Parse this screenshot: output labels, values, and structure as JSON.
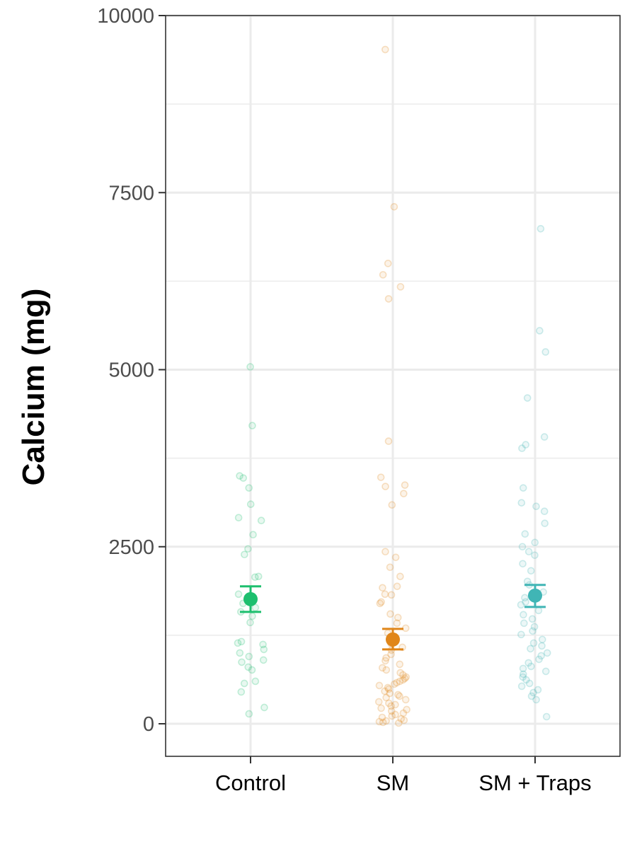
{
  "chart_data": {
    "type": "scatter",
    "title": "",
    "xlabel": "",
    "ylabel": "Calcium (mg)",
    "categories": [
      "Control",
      "SM",
      "SM + Traps"
    ],
    "ylim": [
      -450,
      10000
    ],
    "yticks": [
      0,
      2500,
      5000,
      7500,
      10000
    ],
    "ytick_labels": [
      "0",
      "2500",
      "5000",
      "7500",
      "10000"
    ],
    "grid": true,
    "legend": "none",
    "colors": [
      "#1dbf6e",
      "#e0861a",
      "#40b5b5"
    ],
    "summary": [
      {
        "category": "Control",
        "mean": 1760,
        "lower": 1580,
        "upper": 1940
      },
      {
        "category": "SM",
        "mean": 1190,
        "lower": 1050,
        "upper": 1340
      },
      {
        "category": "SM + Traps",
        "mean": 1810,
        "lower": 1650,
        "upper": 1960
      }
    ],
    "points": [
      {
        "category": "Control",
        "values": [
          5040,
          4210,
          3500,
          3470,
          3330,
          3100,
          2910,
          2870,
          2670,
          2470,
          2390,
          2080,
          2070,
          1830,
          1750,
          1700,
          1640,
          1580,
          1520,
          1430,
          1160,
          1140,
          1120,
          1050,
          1000,
          950,
          900,
          870,
          800,
          760,
          600,
          570,
          450,
          230,
          140
        ]
      },
      {
        "category": "SM",
        "values": [
          9520,
          7300,
          6500,
          6340,
          6170,
          6000,
          3990,
          3480,
          3370,
          3350,
          3250,
          3090,
          2430,
          2350,
          2210,
          2080,
          1940,
          1920,
          1830,
          1820,
          1720,
          1700,
          1550,
          1500,
          1420,
          1350,
          1280,
          1230,
          1180,
          1130,
          1080,
          1040,
          980,
          930,
          890,
          840,
          790,
          760,
          720,
          690,
          660,
          640,
          620,
          600,
          580,
          560,
          540,
          510,
          490,
          460,
          430,
          410,
          390,
          370,
          340,
          310,
          290,
          270,
          250,
          220,
          200,
          180,
          150,
          130,
          110,
          90,
          70,
          50,
          40,
          30,
          20,
          10
        ]
      },
      {
        "category": "SM + Traps",
        "values": [
          6990,
          5550,
          5250,
          4600,
          4050,
          3940,
          3890,
          3330,
          3120,
          3070,
          3000,
          2830,
          2680,
          2560,
          2500,
          2430,
          2380,
          2260,
          2160,
          2010,
          1960,
          1860,
          1780,
          1720,
          1680,
          1600,
          1540,
          1480,
          1420,
          1370,
          1310,
          1260,
          1190,
          1140,
          1100,
          1060,
          1000,
          960,
          910,
          860,
          810,
          780,
          740,
          700,
          660,
          620,
          570,
          530,
          480,
          440,
          390,
          340,
          100
        ]
      }
    ]
  }
}
